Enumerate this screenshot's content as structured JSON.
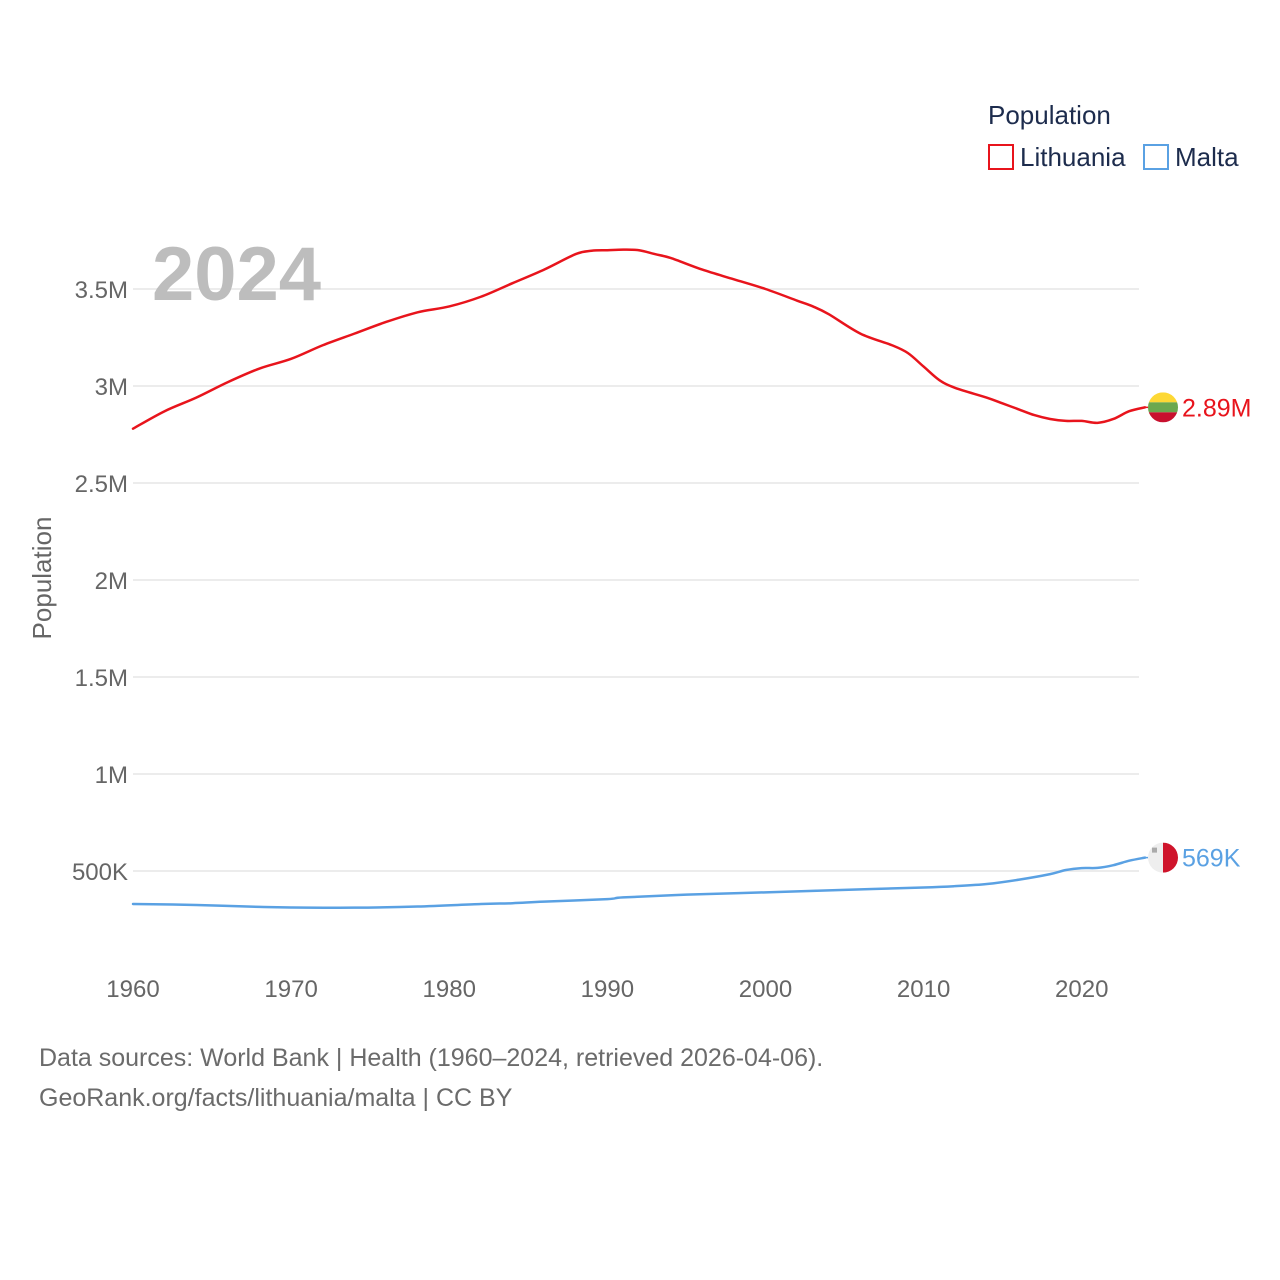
{
  "chart_data": {
    "type": "line",
    "ylabel": "Population",
    "xlabel": "",
    "year_label": "2024",
    "legend_title": "Population",
    "xlim": [
      1960,
      2024
    ],
    "ylim": [
      0,
      3800000
    ],
    "x_ticks": [
      1960,
      1970,
      1980,
      1990,
      2000,
      2010,
      2020
    ],
    "x_tick_labels": [
      "1960",
      "1970",
      "1980",
      "1990",
      "2000",
      "2010",
      "2020"
    ],
    "y_ticks": [
      500000,
      1000000,
      1500000,
      2000000,
      2500000,
      3000000,
      3500000
    ],
    "y_tick_labels": [
      "500K",
      "1M",
      "1.5M",
      "2M",
      "2.5M",
      "3M",
      "3.5M"
    ],
    "series": [
      {
        "name": "Lithuania",
        "color": "#e8141c",
        "end_label": "2.89M",
        "flag": "lithuania-flag-icon",
        "x": [
          1960,
          1962,
          1964,
          1966,
          1968,
          1970,
          1972,
          1974,
          1976,
          1978,
          1980,
          1982,
          1984,
          1986,
          1988,
          1989,
          1990,
          1991,
          1992,
          1993,
          1994,
          1996,
          1998,
          2000,
          2002,
          2003,
          2004,
          2006,
          2008,
          2009,
          2010,
          2011,
          2012,
          2014,
          2015,
          2016,
          2017,
          2018,
          2019,
          2020,
          2021,
          2022,
          2023,
          2024
        ],
        "values": [
          2780000,
          2870000,
          2940000,
          3020000,
          3090000,
          3140000,
          3210000,
          3270000,
          3330000,
          3380000,
          3410000,
          3460000,
          3530000,
          3600000,
          3680000,
          3697000,
          3700000,
          3703000,
          3700000,
          3680000,
          3660000,
          3600000,
          3550000,
          3500000,
          3440000,
          3410000,
          3370000,
          3270000,
          3210000,
          3170000,
          3100000,
          3030000,
          2990000,
          2940000,
          2910000,
          2880000,
          2850000,
          2830000,
          2820000,
          2820000,
          2810000,
          2830000,
          2870000,
          2890000
        ]
      },
      {
        "name": "Malta",
        "color": "#5aa1e3",
        "end_label": "569K",
        "flag": "malta-flag-icon",
        "x": [
          1960,
          1964,
          1968,
          1970,
          1974,
          1978,
          1982,
          1984,
          1986,
          1990,
          1991,
          1995,
          2000,
          2005,
          2010,
          2012,
          2014,
          2016,
          2018,
          2019,
          2020,
          2021,
          2022,
          2023,
          2024
        ],
        "values": [
          330000,
          325000,
          315000,
          312000,
          311000,
          317000,
          330000,
          334000,
          342000,
          355000,
          364000,
          378000,
          390000,
          403000,
          415000,
          422000,
          433000,
          455000,
          484000,
          505000,
          515000,
          516000,
          530000,
          553000,
          569000
        ]
      }
    ]
  },
  "footer": {
    "line1": "Data sources: World Bank | Health (1960–2024, retrieved 2026-04-06).",
    "line2": "GeoRank.org/facts/lithuania/malta | CC BY"
  }
}
